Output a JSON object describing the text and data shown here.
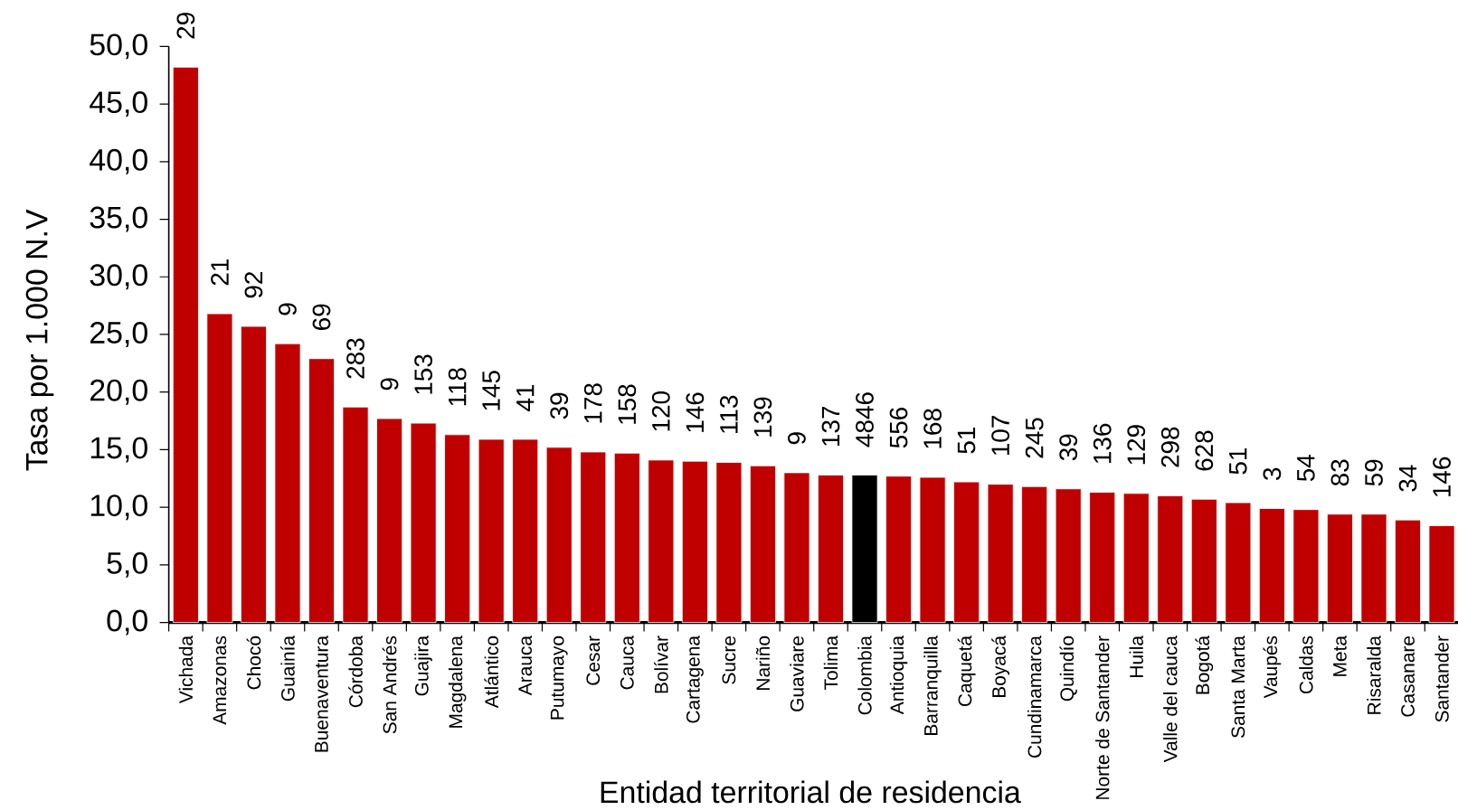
{
  "chart_data": {
    "type": "bar",
    "xlabel": "Entidad territorial de residencia",
    "ylabel": "Tasa por 1.000 N.V",
    "categories": [
      "Vichada",
      "Amazonas",
      "Chocó",
      "Guainía",
      "Buenaventura",
      "Córdoba",
      "San Andrés",
      "Guajira",
      "Magdalena",
      "Atlántico",
      "Arauca",
      "Putumayo",
      "Cesar",
      "Cauca",
      "Bolívar",
      "Cartagena",
      "Sucre",
      "Nariño",
      "Guaviare",
      "Tolima",
      "Colombia",
      "Antioquia",
      "Barranquilla",
      "Caquetá",
      "Boyacá",
      "Cundinamarca",
      "Quindío",
      "Norte de Santander",
      "Huila",
      "Valle del cauca",
      "Bogotá",
      "Santa Marta",
      "Vaupés",
      "Caldas",
      "Meta",
      "Risaralda",
      "Casanare",
      "Santander"
    ],
    "values": [
      48.2,
      26.8,
      25.7,
      24.2,
      22.9,
      18.7,
      17.7,
      17.3,
      16.3,
      15.9,
      15.9,
      15.2,
      14.8,
      14.7,
      14.1,
      14.0,
      13.9,
      13.6,
      13.0,
      12.8,
      12.8,
      12.7,
      12.6,
      12.2,
      12.0,
      11.8,
      11.6,
      11.3,
      11.2,
      11.0,
      10.7,
      10.4,
      9.9,
      9.8,
      9.4,
      9.4,
      8.9,
      8.4
    ],
    "colors": [
      "#c00000",
      "#c00000",
      "#c00000",
      "#c00000",
      "#c00000",
      "#c00000",
      "#c00000",
      "#c00000",
      "#c00000",
      "#c00000",
      "#c00000",
      "#c00000",
      "#c00000",
      "#c00000",
      "#c00000",
      "#c00000",
      "#c00000",
      "#c00000",
      "#c00000",
      "#c00000",
      "#000000",
      "#c00000",
      "#c00000",
      "#c00000",
      "#c00000",
      "#c00000",
      "#c00000",
      "#c00000",
      "#c00000",
      "#c00000",
      "#c00000",
      "#c00000",
      "#c00000",
      "#c00000",
      "#c00000",
      "#c00000",
      "#c00000",
      "#c00000"
    ],
    "annotations": [
      {
        "text": "29",
        "x": "Vichada",
        "y": 48.2
      },
      {
        "text": "21",
        "x": "Amazonas",
        "y": 26.8
      },
      {
        "text": "92",
        "x": "Chocó",
        "y": 25.7
      },
      {
        "text": "9",
        "x": "Guainía",
        "y": 24.2
      },
      {
        "text": "69",
        "x": "Buenaventura",
        "y": 22.9
      },
      {
        "text": "283",
        "x": "Córdoba",
        "y": 18.7
      },
      {
        "text": "9",
        "x": "San Andrés",
        "y": 17.7
      },
      {
        "text": "153",
        "x": "Guajira",
        "y": 17.3
      },
      {
        "text": "118",
        "x": "Magdalena",
        "y": 16.3
      },
      {
        "text": "145",
        "x": "Atlántico",
        "y": 15.9
      },
      {
        "text": "41",
        "x": "Arauca",
        "y": 15.9
      },
      {
        "text": "39",
        "x": "Putumayo",
        "y": 15.2
      },
      {
        "text": "178",
        "x": "Cesar",
        "y": 14.8
      },
      {
        "text": "158",
        "x": "Cauca",
        "y": 14.7
      },
      {
        "text": "120",
        "x": "Bolívar",
        "y": 14.1
      },
      {
        "text": "146",
        "x": "Cartagena",
        "y": 14.0
      },
      {
        "text": "113",
        "x": "Sucre",
        "y": 13.9
      },
      {
        "text": "139",
        "x": "Nariño",
        "y": 13.6
      },
      {
        "text": "9",
        "x": "Guaviare",
        "y": 13.0
      },
      {
        "text": "137",
        "x": "Tolima",
        "y": 12.8
      },
      {
        "text": "4846",
        "x": "Colombia",
        "y": 12.8
      },
      {
        "text": "556",
        "x": "Antioquia",
        "y": 12.7
      },
      {
        "text": "168",
        "x": "Barranquilla",
        "y": 12.6
      },
      {
        "text": "51",
        "x": "Caquetá",
        "y": 12.2
      },
      {
        "text": "107",
        "x": "Boyacá",
        "y": 12.0
      },
      {
        "text": "245",
        "x": "Cundinamarca",
        "y": 11.8
      },
      {
        "text": "39",
        "x": "Quindío",
        "y": 11.6
      },
      {
        "text": "136",
        "x": "Norte de Santander",
        "y": 11.3
      },
      {
        "text": "129",
        "x": "Huila",
        "y": 11.2
      },
      {
        "text": "298",
        "x": "Valle del cauca",
        "y": 11.0
      },
      {
        "text": "628",
        "x": "Bogotá",
        "y": 10.7
      },
      {
        "text": "51",
        "x": "Santa Marta",
        "y": 10.4
      },
      {
        "text": "3",
        "x": "Vaupés",
        "y": 9.9
      },
      {
        "text": "54",
        "x": "Caldas",
        "y": 9.8
      },
      {
        "text": "83",
        "x": "Meta",
        "y": 9.4
      },
      {
        "text": "59",
        "x": "Risaralda",
        "y": 9.4
      },
      {
        "text": "34",
        "x": "Casanare",
        "y": 8.9
      },
      {
        "text": "146",
        "x": "Santander",
        "y": 8.4
      }
    ],
    "ylim": [
      0,
      50
    ],
    "yticks": [
      {
        "value": 0,
        "label": "0,0"
      },
      {
        "value": 5,
        "label": "5,0"
      },
      {
        "value": 10,
        "label": "10,0"
      },
      {
        "value": 15,
        "label": "15,0"
      },
      {
        "value": 20,
        "label": "20,0"
      },
      {
        "value": 25,
        "label": "25,0"
      },
      {
        "value": 30,
        "label": "30,0"
      },
      {
        "value": 35,
        "label": "35,0"
      },
      {
        "value": 40,
        "label": "40,0"
      },
      {
        "value": 45,
        "label": "45,0"
      },
      {
        "value": 50,
        "label": "50,0"
      }
    ]
  }
}
